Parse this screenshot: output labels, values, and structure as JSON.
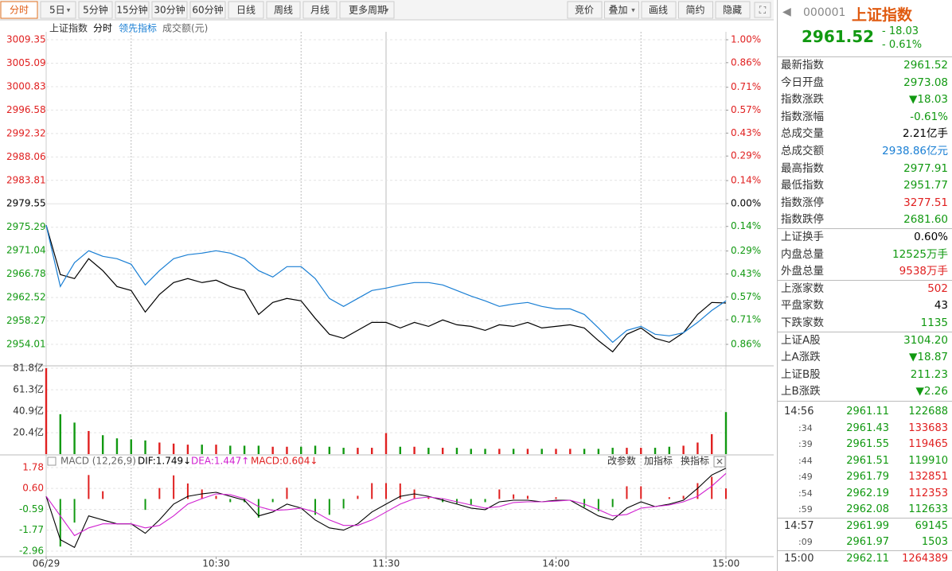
{
  "toolbar": {
    "periods": [
      "分时",
      "5日",
      "5分钟",
      "15分钟",
      "30分钟",
      "60分钟",
      "日线",
      "周线",
      "月线",
      "更多周期"
    ],
    "tools": [
      "竞价",
      "叠加",
      "画线",
      "简约",
      "隐藏"
    ]
  },
  "chart_data": [
    {
      "type": "line",
      "title": "上证指数",
      "xlim": [
        0,
        240
      ],
      "x": [
        0,
        5,
        10,
        15,
        20,
        25,
        30,
        35,
        40,
        45,
        50,
        55,
        60,
        65,
        70,
        75,
        80,
        85,
        90,
        95,
        100,
        105,
        110,
        115,
        120,
        125,
        130,
        135,
        140,
        145,
        150,
        155,
        160,
        165,
        170,
        175,
        180,
        185,
        190,
        195,
        200,
        205,
        210,
        215,
        220,
        225,
        230,
        235,
        240
      ],
      "ylim": [
        2954.01,
        3009.35
      ],
      "yticks": [
        3009.35,
        3005.09,
        3000.83,
        2996.58,
        2992.32,
        2988.06,
        2983.81,
        2979.55,
        2975.29,
        2971.04,
        2966.78,
        2962.52,
        2958.27,
        2954.01
      ],
      "y2lim": [
        -0.86,
        1.0
      ],
      "y2ticks": [
        {
          "value": 1.0,
          "label": "1.00%"
        },
        {
          "value": 0.86,
          "label": "0.86%"
        },
        {
          "value": 0.71,
          "label": "0.71%"
        },
        {
          "value": 0.57,
          "label": "0.57%"
        },
        {
          "value": 0.43,
          "label": "0.43%"
        },
        {
          "value": 0.29,
          "label": "0.29%"
        },
        {
          "value": 0.14,
          "label": "0.14%"
        },
        {
          "value": 0,
          "label": "0.00%"
        },
        {
          "value": -0.14,
          "label": "0.14%"
        },
        {
          "value": -0.29,
          "label": "0.29%"
        },
        {
          "value": -0.43,
          "label": "0.43%"
        },
        {
          "value": -0.57,
          "label": "0.57%"
        },
        {
          "value": -0.71,
          "label": "0.71%"
        },
        {
          "value": -0.86,
          "label": "0.86%"
        }
      ],
      "series": [
        {
          "name": "分时",
          "color": "#000000",
          "values": [
            2975.65,
            2966.68,
            2965.96,
            2969.57,
            2967.4,
            2964.51,
            2963.79,
            2959.88,
            2963.07,
            2965.23,
            2965.96,
            2965.23,
            2965.67,
            2964.51,
            2963.79,
            2959.45,
            2961.62,
            2962.34,
            2961.91,
            2958.73,
            2955.84,
            2955.11,
            2956.56,
            2958.0,
            2958.0,
            2956.99,
            2958.0,
            2957.28,
            2958.44,
            2957.57,
            2957.28,
            2956.56,
            2957.57,
            2957.28,
            2958.0,
            2956.99,
            2957.28,
            2957.57,
            2956.99,
            2954.68,
            2952.65,
            2955.84,
            2956.99,
            2955.11,
            2954.39,
            2956.12,
            2959.45,
            2961.62,
            2961.52
          ]
        },
        {
          "name": "领先指标",
          "color": "#1a7fd4",
          "values": [
            2975.65,
            2964.51,
            2968.85,
            2971.02,
            2970.01,
            2969.57,
            2968.56,
            2964.8,
            2967.4,
            2969.57,
            2970.3,
            2970.58,
            2971.02,
            2970.58,
            2969.57,
            2967.4,
            2966.25,
            2968.13,
            2968.13,
            2965.96,
            2962.34,
            2960.9,
            2962.34,
            2963.79,
            2964.22,
            2964.8,
            2965.23,
            2965.23,
            2964.8,
            2963.79,
            2962.78,
            2961.91,
            2960.9,
            2961.33,
            2961.62,
            2960.9,
            2960.46,
            2960.46,
            2959.45,
            2956.99,
            2954.39,
            2956.56,
            2957.28,
            2955.84,
            2955.55,
            2956.12,
            2958.0,
            2960.17,
            2961.91
          ]
        }
      ],
      "grid": true
    },
    {
      "type": "bar",
      "title": "成交额(元)",
      "ylim": [
        0,
        81.8
      ],
      "yticks": [
        {
          "value": 81.8,
          "label": "81.8亿"
        },
        {
          "value": 61.3,
          "label": "61.3亿"
        },
        {
          "value": 40.9,
          "label": "40.9亿"
        },
        {
          "value": 20.4,
          "label": "20.4亿"
        }
      ],
      "values": [
        81.8,
        38,
        30,
        22,
        18,
        15,
        14,
        13,
        11,
        10,
        9,
        9,
        9,
        8,
        8,
        8,
        7,
        7,
        7,
        8,
        7,
        6,
        6,
        6,
        20,
        7,
        7,
        6,
        6,
        6,
        5,
        5,
        5,
        5,
        5,
        5,
        5,
        5,
        5,
        5,
        6,
        6,
        6,
        6,
        7,
        8,
        11,
        19,
        40
      ],
      "up_color": "#e02020",
      "down_color": "#119911"
    },
    {
      "type": "macd",
      "title": "MACD (12,26,9)",
      "stats": [
        {
          "text": "DIF:1.749↓",
          "color": "#000000"
        },
        {
          "text": "DEA:1.447↑",
          "color": "#d020d0"
        },
        {
          "text": "MACD:0.604↓",
          "color": "#e02020"
        }
      ],
      "buttons": [
        "改参数",
        "加指标",
        "换指标"
      ],
      "ylim": [
        -2.96,
        1.78
      ],
      "yticks": [
        1.78,
        {
          "value": 0.6,
          "label": "0.60"
        },
        -0.59,
        -1.77,
        -2.96
      ],
      "xticks": [
        {
          "value": 0,
          "label": "06/29"
        },
        {
          "value": 60,
          "label": "10:30"
        },
        {
          "value": 120,
          "label": "11:30"
        },
        {
          "value": 180,
          "label": "14:00"
        },
        {
          "value": 240,
          "label": "15:00"
        }
      ],
      "xgrid_dashed": [
        30,
        90,
        210
      ],
      "xgrid_solid": [
        120
      ],
      "lines": [
        {
          "color": "#000000",
          "values": [
            0.15,
            -2.31,
            -2.75,
            -0.96,
            -1.19,
            -1.41,
            -1.41,
            -1.95,
            -1.19,
            -0.29,
            0.15,
            0.29,
            0.38,
            0.15,
            -0.07,
            -0.96,
            -0.74,
            -0.29,
            -0.52,
            -1.19,
            -1.64,
            -1.77,
            -1.41,
            -0.74,
            -0.29,
            0.15,
            0.29,
            0.15,
            -0.07,
            -0.29,
            -0.52,
            -0.61,
            -0.16,
            -0.07,
            -0.07,
            -0.16,
            -0.07,
            -0.07,
            -0.52,
            -0.96,
            -1.19,
            -0.52,
            -0.16,
            -0.43,
            -0.29,
            -0.07,
            0.6,
            1.36,
            1.75
          ]
        },
        {
          "color": "#d020d0",
          "values": [
            0.15,
            -0.96,
            -2.08,
            -1.64,
            -1.41,
            -1.41,
            -1.41,
            -1.64,
            -1.5,
            -0.96,
            -0.29,
            0.02,
            0.29,
            0.24,
            0.02,
            -0.43,
            -0.65,
            -0.61,
            -0.52,
            -0.74,
            -1.19,
            -1.5,
            -1.5,
            -1.19,
            -0.74,
            -0.29,
            0.02,
            0.11,
            0.02,
            -0.16,
            -0.34,
            -0.52,
            -0.43,
            -0.2,
            -0.16,
            -0.16,
            -0.12,
            -0.07,
            -0.29,
            -0.61,
            -0.96,
            -0.88,
            -0.52,
            -0.43,
            -0.34,
            -0.16,
            0.15,
            0.73,
            1.45
          ]
        }
      ],
      "histogram": [
        0,
        -2.7,
        -1.34,
        1.36,
        0.44,
        0,
        0,
        -0.62,
        0.62,
        1.34,
        0.88,
        0.54,
        0.18,
        -0.18,
        -0.18,
        -1.06,
        -0.18,
        0.64,
        0,
        -0.9,
        -0.9,
        -0.54,
        0.18,
        0.9,
        0.9,
        0.88,
        0.54,
        0.08,
        -0.18,
        -0.26,
        -0.36,
        -0.18,
        0.54,
        0.26,
        0.18,
        0,
        0.1,
        0,
        -0.46,
        -0.7,
        -0.46,
        0.72,
        0.72,
        0,
        0.1,
        0.18,
        0.9,
        1.26,
        0.6
      ]
    }
  ],
  "quote_panel": {
    "code": "000001",
    "name": "上证指数",
    "price": "2961.52",
    "change": "- 18.03",
    "change_pct": "- 0.61%",
    "groups": [
      [
        {
          "label": "最新指数",
          "value": "2961.52",
          "color": "#119911"
        },
        {
          "label": "今日开盘",
          "value": "2973.08",
          "color": "#119911"
        },
        {
          "label": "指数涨跌",
          "value": "▼18.03",
          "color": "#119911"
        },
        {
          "label": "指数涨幅",
          "value": "-0.61%",
          "color": "#119911"
        },
        {
          "label": "总成交量",
          "value": "2.21亿手",
          "color": "#000000"
        },
        {
          "label": "总成交额",
          "value": "2938.86亿元",
          "color": "#1a7fd4"
        },
        {
          "label": "最高指数",
          "value": "2977.91",
          "color": "#119911"
        },
        {
          "label": "最低指数",
          "value": "2951.77",
          "color": "#119911"
        },
        {
          "label": "指数涨停",
          "value": "3277.51",
          "color": "#e02020"
        },
        {
          "label": "指数跌停",
          "value": "2681.60",
          "color": "#119911"
        }
      ],
      [
        {
          "label": "上证换手",
          "value": "0.60%",
          "color": "#000000"
        },
        {
          "label": "内盘总量",
          "value": "12525万手",
          "color": "#119911"
        },
        {
          "label": "外盘总量",
          "value": "9538万手",
          "color": "#e02020"
        }
      ],
      [
        {
          "label": "上涨家数",
          "value": "502",
          "color": "#e02020"
        },
        {
          "label": "平盘家数",
          "value": "43",
          "color": "#000000"
        },
        {
          "label": "下跌家数",
          "value": "1135",
          "color": "#119911"
        }
      ],
      [
        {
          "label": "上证A股",
          "value": "3104.20",
          "color": "#119911"
        },
        {
          "label": "上A涨跌",
          "value": "▼18.87",
          "color": "#119911"
        },
        {
          "label": "上证B股",
          "value": "211.23",
          "color": "#119911"
        },
        {
          "label": "上B涨跌",
          "value": "▼2.26",
          "color": "#119911"
        }
      ]
    ],
    "ticks": [
      {
        "time": "14:56",
        "price": "2961.11",
        "volume": "122688",
        "color": "#119911"
      },
      {
        "time": ":34",
        "price": "2961.43",
        "volume": "133683",
        "color": "#e02020"
      },
      {
        "time": ":39",
        "price": "2961.55",
        "volume": "119465",
        "color": "#e02020"
      },
      {
        "time": ":44",
        "price": "2961.51",
        "volume": "119910",
        "color": "#119911"
      },
      {
        "time": ":49",
        "price": "2961.79",
        "volume": "132851",
        "color": "#e02020"
      },
      {
        "time": ":54",
        "price": "2962.19",
        "volume": "112353",
        "color": "#e02020"
      },
      {
        "time": ":59",
        "price": "2962.08",
        "volume": "112633",
        "color": "#119911"
      },
      {
        "time": "14:57",
        "price": "2961.99",
        "volume": "69145",
        "color": "#119911"
      },
      {
        "time": ":09",
        "price": "2961.97",
        "volume": "1503",
        "color": "#119911"
      },
      {
        "time": "15:00",
        "price": "2962.11",
        "volume": "1264389",
        "color": "#e02020"
      }
    ]
  }
}
